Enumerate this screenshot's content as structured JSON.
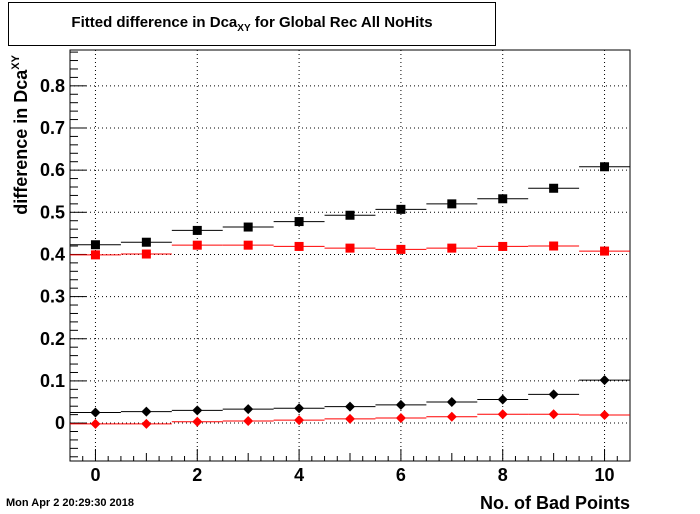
{
  "title": {
    "main": "Fitted difference in Dca",
    "subscript": "XY",
    "rest": " for Global Rec All NoHits"
  },
  "timestamp": "Mon Apr  2 20:29:30 2018",
  "chart_data": {
    "type": "scatter",
    "title": "Fitted difference in Dca_XY for Global Rec All NoHits",
    "xlabel": "No. of Bad Points",
    "ylabel": "difference in Dca_XY",
    "ylabel_main": "difference in Dca",
    "ylabel_sub": "XY",
    "xlim": [
      -0.5,
      10.5
    ],
    "ylim": [
      -0.09,
      0.885
    ],
    "xticks": [
      0,
      2,
      4,
      6,
      8,
      10
    ],
    "xtick_labels": [
      "0",
      "2",
      "4",
      "6",
      "8",
      "10"
    ],
    "yticks": [
      0,
      0.1,
      0.2,
      0.3,
      0.4,
      0.5,
      0.6,
      0.7,
      0.8
    ],
    "ytick_labels": [
      "0",
      "0.1",
      "0.2",
      "0.3",
      "0.4",
      "0.5",
      "0.6",
      "0.7",
      "0.8"
    ],
    "grid": true,
    "x": [
      0,
      1,
      2,
      3,
      4,
      5,
      6,
      7,
      8,
      9,
      10
    ],
    "series": [
      {
        "marker": "square",
        "color": "#000000",
        "values": [
          0.423,
          0.429,
          0.457,
          0.465,
          0.478,
          0.493,
          0.507,
          0.52,
          0.532,
          0.557,
          0.608
        ]
      },
      {
        "marker": "square",
        "color": "#ff0000",
        "values": [
          0.399,
          0.401,
          0.422,
          0.422,
          0.419,
          0.415,
          0.412,
          0.415,
          0.419,
          0.42,
          0.408
        ]
      },
      {
        "marker": "diamond",
        "color": "#000000",
        "values": [
          0.025,
          0.027,
          0.03,
          0.033,
          0.035,
          0.039,
          0.043,
          0.05,
          0.056,
          0.068,
          0.102
        ]
      },
      {
        "marker": "diamond",
        "color": "#ff0000",
        "values": [
          -0.002,
          -0.002,
          0.003,
          0.005,
          0.007,
          0.01,
          0.012,
          0.015,
          0.021,
          0.021,
          0.019
        ]
      }
    ]
  }
}
